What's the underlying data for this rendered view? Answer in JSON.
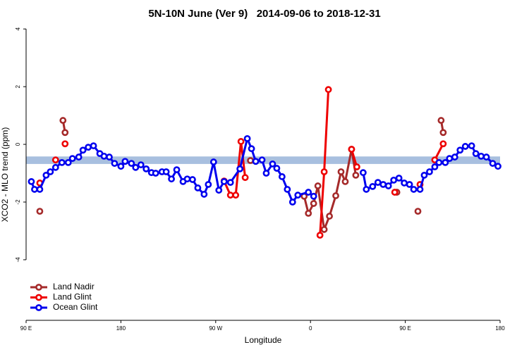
{
  "chart_data": {
    "type": "line",
    "title": "5N-10N June (Ver 9)   2014-09-06 to 2018-12-31",
    "xlabel": "Longitude",
    "ylabel": "XCO2 - MLO trend (ppm)",
    "xlim": [
      90,
      540
    ],
    "ylim": [
      -6.1,
      4.15
    ],
    "xticks": [
      {
        "value": 90,
        "label": "90 E"
      },
      {
        "value": 180,
        "label": "180"
      },
      {
        "value": 270,
        "label": "90 W"
      },
      {
        "value": 360,
        "label": "0"
      },
      {
        "value": 450,
        "label": "90 E"
      },
      {
        "value": 540,
        "label": "180"
      }
    ],
    "yticks": [
      -4,
      -2,
      0,
      2,
      4
    ],
    "band": {
      "ymin": -0.68,
      "ymax": -0.42,
      "color": "#a8bfdf"
    },
    "legend": "bottom-left",
    "series": [
      {
        "name": "Land Nadir",
        "color": "#a52a2a",
        "x": [
          103,
          null,
          125,
          127,
          null,
          303,
          null,
          354,
          358,
          363,
          367,
          373,
          378,
          384,
          389,
          393,
          399,
          403,
          null,
          442,
          null,
          462,
          null,
          484,
          486
        ],
        "values": [
          -2.32,
          null,
          0.83,
          0.41,
          null,
          -0.56,
          null,
          -1.8,
          -2.39,
          -2.05,
          -1.44,
          -2.95,
          -2.49,
          -1.78,
          -0.95,
          -1.29,
          -0.17,
          -1.07,
          null,
          -1.66,
          null,
          -2.32,
          null,
          0.83,
          0.41
        ]
      },
      {
        "name": "Land Glint",
        "color": "#ee0000",
        "x": [
          103,
          null,
          118,
          null,
          127,
          null,
          278,
          284,
          289,
          294,
          298,
          null,
          369,
          373,
          377,
          null,
          399,
          404,
          null,
          440,
          null,
          464,
          null,
          478,
          486
        ],
        "values": [
          -1.34,
          null,
          -0.54,
          null,
          0.02,
          null,
          -1.27,
          -1.76,
          -1.76,
          0.1,
          -1.15,
          null,
          -3.15,
          -0.95,
          1.9,
          null,
          -0.17,
          -0.78,
          null,
          -1.66,
          null,
          -1.39,
          null,
          -0.54,
          0.02
        ]
      },
      {
        "name": "Ocean Glint",
        "color": "#0000ee",
        "x": [
          95,
          98,
          103,
          109,
          113,
          118,
          124,
          130,
          134,
          140,
          144,
          149,
          154,
          160,
          164,
          169,
          174,
          180,
          184,
          190,
          194,
          199,
          204,
          209,
          213,
          219,
          223,
          228,
          233,
          239,
          243,
          248,
          253,
          259,
          263,
          268,
          273,
          278,
          284,
          293,
          300,
          304,
          308,
          314,
          318,
          324,
          328,
          333,
          338,
          343,
          348,
          358,
          363,
          null,
          410,
          413,
          419,
          424,
          429,
          434,
          439,
          444,
          449,
          454,
          458,
          464,
          468,
          473,
          478,
          482,
          488,
          492,
          497,
          502,
          507,
          513,
          517,
          522,
          527,
          533,
          538
        ],
        "values": [
          -1.29,
          -1.56,
          -1.56,
          -1.07,
          -0.95,
          -0.8,
          -0.63,
          -0.63,
          -0.49,
          -0.44,
          -0.2,
          -0.1,
          -0.05,
          -0.32,
          -0.41,
          -0.44,
          -0.66,
          -0.76,
          -0.59,
          -0.66,
          -0.8,
          -0.71,
          -0.85,
          -0.98,
          -1.0,
          -0.95,
          -0.95,
          -1.2,
          -0.88,
          -1.29,
          -1.2,
          -1.22,
          -1.51,
          -1.73,
          -1.39,
          -0.61,
          -1.59,
          -1.29,
          -1.32,
          -0.85,
          0.2,
          -0.15,
          -0.59,
          -0.54,
          -1.0,
          -0.68,
          -0.83,
          -1.12,
          -1.56,
          -2.0,
          -1.76,
          -1.66,
          -1.8,
          null,
          -0.98,
          -1.56,
          -1.46,
          -1.32,
          -1.39,
          -1.44,
          -1.24,
          -1.17,
          -1.34,
          -1.39,
          -1.56,
          -1.56,
          -1.07,
          -0.95,
          -0.78,
          -0.63,
          -0.63,
          -0.49,
          -0.44,
          -0.2,
          -0.07,
          -0.05,
          -0.32,
          -0.41,
          -0.44,
          -0.66,
          -0.76
        ]
      }
    ]
  }
}
